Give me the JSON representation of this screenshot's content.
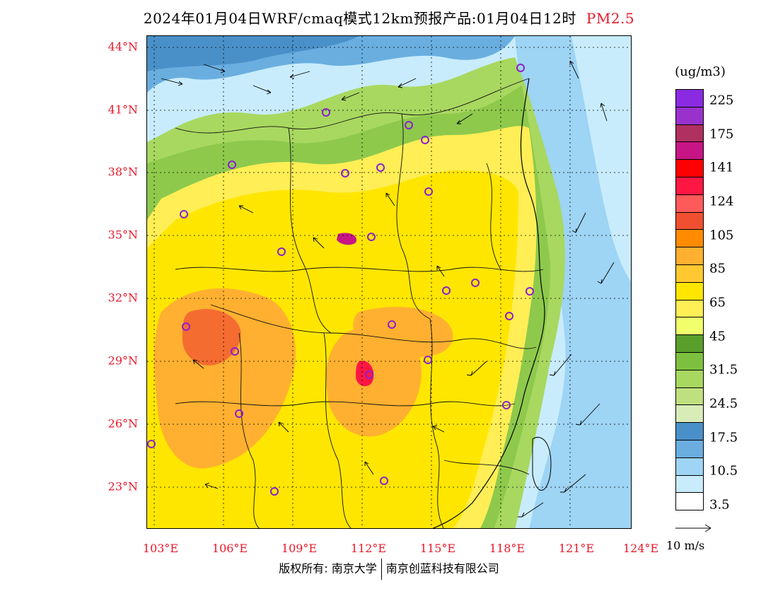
{
  "title": {
    "main": "2024年01月04日WRF/cmaq模式12km预报产品:01月04日12时",
    "variable": "PM2.5"
  },
  "map": {
    "lat_labels": [
      "44°N",
      "41°N",
      "38°N",
      "35°N",
      "32°N",
      "29°N",
      "26°N",
      "23°N"
    ],
    "lon_labels": [
      "103°E",
      "106°E",
      "109°E",
      "112°E",
      "115°E",
      "118°E",
      "121°E",
      "124°E"
    ],
    "station_marker": "circle",
    "station_color": "#8b1fd0"
  },
  "colorbar": {
    "unit": "(ug/m3)",
    "colors": [
      "#8a2be2",
      "#9932cc",
      "#b03060",
      "#c71585",
      "#ff0000",
      "#ff1744",
      "#ff5a5a",
      "#f05030",
      "#ff8c00",
      "#ffb030",
      "#ffc830",
      "#ffe600",
      "#ffee55",
      "#f0ff6b",
      "#5a9e2c",
      "#7dc040",
      "#a8d860",
      "#c0e080",
      "#d8ecb8",
      "#4a90c8",
      "#6aaee0",
      "#9ed4f4",
      "#c8ecfc",
      "#ffffff"
    ],
    "labels": [
      {
        "text": "225",
        "band": 1
      },
      {
        "text": "175",
        "band": 3
      },
      {
        "text": "141",
        "band": 5
      },
      {
        "text": "124",
        "band": 7
      },
      {
        "text": "105",
        "band": 9
      },
      {
        "text": "85",
        "band": 11
      },
      {
        "text": "65",
        "band": 13
      },
      {
        "text": "45",
        "band": 15
      },
      {
        "text": "31.5",
        "band": 17
      },
      {
        "text": "24.5",
        "band": 19
      },
      {
        "text": "17.5",
        "band": 21
      },
      {
        "text": "10.5",
        "band": 23
      },
      {
        "text": "3.5",
        "band": 25
      }
    ]
  },
  "wind_reference": {
    "label": "10 m/s"
  },
  "footer": {
    "copyright": "版权所有: 南京大学",
    "company": "南京创蓝科技有限公司"
  }
}
